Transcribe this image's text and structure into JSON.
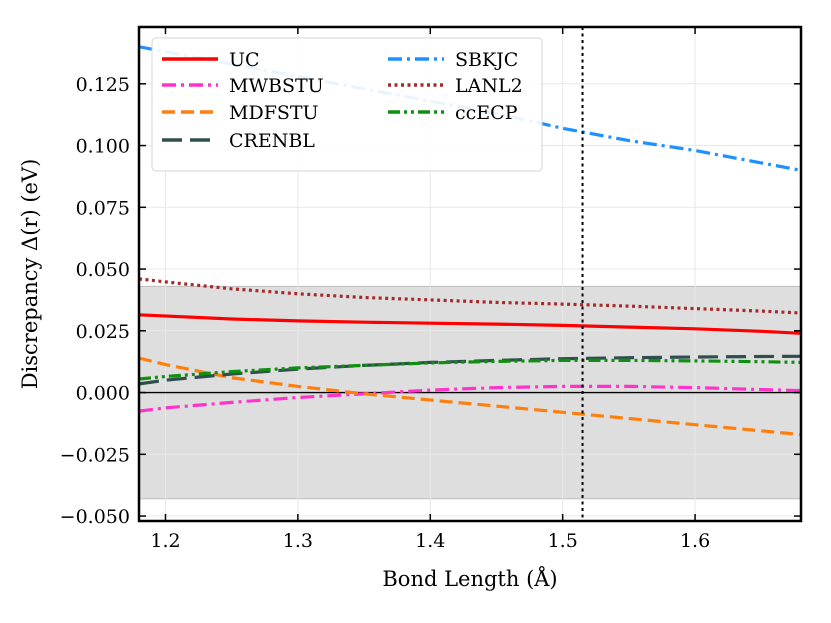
{
  "chart_data": {
    "type": "line",
    "title": "",
    "xlabel": "Bond Length (Å)",
    "ylabel": "Discrepancy Δ(r) (eV)",
    "xlim": [
      1.18,
      1.68
    ],
    "ylim": [
      -0.052,
      0.148
    ],
    "xticks": [
      1.2,
      1.3,
      1.4,
      1.5,
      1.6
    ],
    "xtick_labels": [
      "1.2",
      "1.3",
      "1.4",
      "1.5",
      "1.6"
    ],
    "yticks": [
      -0.05,
      -0.025,
      0.0,
      0.025,
      0.05,
      0.075,
      0.1,
      0.125
    ],
    "ytick_labels": [
      "−0.050",
      "−0.025",
      "0.000",
      "0.025",
      "0.050",
      "0.075",
      "0.100",
      "0.125"
    ],
    "grid": true,
    "shaded_band": {
      "y_min": -0.043,
      "y_max": 0.043,
      "color": "#dcdcdc"
    },
    "zero_line": 0.0,
    "vertical_line": {
      "x": 1.515,
      "style": "dotted",
      "color": "#000000"
    },
    "legend_position": "top-left",
    "series": [
      {
        "name": "UC",
        "color": "#ff0000",
        "dash": "solid",
        "x": [
          1.18,
          1.25,
          1.3,
          1.35,
          1.4,
          1.45,
          1.5,
          1.55,
          1.6,
          1.65,
          1.68
        ],
        "y": [
          0.0315,
          0.0298,
          0.029,
          0.0285,
          0.0281,
          0.0277,
          0.0272,
          0.0265,
          0.0258,
          0.0248,
          0.024
        ]
      },
      {
        "name": "MWBSTU",
        "color": "#ff33cc",
        "dash": "dashdot",
        "x": [
          1.18,
          1.2,
          1.25,
          1.3,
          1.35,
          1.4,
          1.45,
          1.5,
          1.55,
          1.6,
          1.65,
          1.68
        ],
        "y": [
          -0.0075,
          -0.0062,
          -0.004,
          -0.002,
          -0.0005,
          0.001,
          0.002,
          0.0025,
          0.0025,
          0.002,
          0.0012,
          0.0008
        ]
      },
      {
        "name": "MDFSTU",
        "color": "#ff7f0e",
        "dash": "dashed",
        "x": [
          1.18,
          1.2,
          1.25,
          1.3,
          1.35,
          1.4,
          1.45,
          1.5,
          1.55,
          1.6,
          1.65,
          1.68
        ],
        "y": [
          0.014,
          0.0113,
          0.006,
          0.0025,
          -0.0005,
          -0.003,
          -0.0055,
          -0.008,
          -0.0105,
          -0.013,
          -0.0155,
          -0.017
        ]
      },
      {
        "name": "CRENBL",
        "color": "#2f4f4f",
        "dash": "longdash",
        "x": [
          1.18,
          1.2,
          1.25,
          1.3,
          1.35,
          1.4,
          1.45,
          1.5,
          1.55,
          1.6,
          1.65,
          1.68
        ],
        "y": [
          0.0035,
          0.005,
          0.0075,
          0.0095,
          0.011,
          0.0122,
          0.013,
          0.0137,
          0.0141,
          0.0144,
          0.0146,
          0.0147
        ]
      },
      {
        "name": "SBKJC",
        "color": "#1e90ff",
        "dash": "dashdot",
        "x": [
          1.18,
          1.25,
          1.3,
          1.35,
          1.4,
          1.45,
          1.5,
          1.55,
          1.6,
          1.65,
          1.68
        ],
        "y": [
          0.14,
          0.133,
          0.128,
          0.123,
          0.118,
          0.113,
          0.107,
          0.102,
          0.098,
          0.093,
          0.09
        ]
      },
      {
        "name": "LANL2",
        "color": "#a52a2a",
        "dash": "dotted",
        "x": [
          1.18,
          1.2,
          1.25,
          1.3,
          1.35,
          1.4,
          1.45,
          1.5,
          1.55,
          1.6,
          1.65,
          1.68
        ],
        "y": [
          0.046,
          0.0448,
          0.042,
          0.04,
          0.0385,
          0.0375,
          0.0365,
          0.0358,
          0.035,
          0.034,
          0.033,
          0.0322
        ]
      },
      {
        "name": "ccECP",
        "color": "#109010",
        "dash": "dashdotdot",
        "x": [
          1.18,
          1.2,
          1.25,
          1.3,
          1.35,
          1.4,
          1.45,
          1.5,
          1.55,
          1.6,
          1.65,
          1.68
        ],
        "y": [
          0.0055,
          0.0065,
          0.0085,
          0.01,
          0.011,
          0.012,
          0.0126,
          0.013,
          0.013,
          0.0128,
          0.0125,
          0.0122
        ]
      }
    ]
  }
}
